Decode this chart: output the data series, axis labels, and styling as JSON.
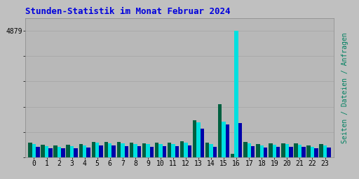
{
  "title": "Stunden-Statistik im Monat Februar 2024",
  "background_color": "#c0c0c0",
  "plot_bg_color": "#b8b8b8",
  "title_color": "#0000dd",
  "hours": [
    0,
    1,
    2,
    3,
    4,
    5,
    6,
    7,
    8,
    9,
    10,
    11,
    12,
    13,
    14,
    15,
    16,
    17,
    18,
    19,
    20,
    21,
    22,
    23
  ],
  "seiten": [
    560,
    490,
    460,
    500,
    530,
    610,
    600,
    595,
    575,
    555,
    565,
    580,
    620,
    1430,
    565,
    2050,
    130,
    610,
    530,
    545,
    555,
    545,
    460,
    510
  ],
  "dateien": [
    510,
    430,
    415,
    445,
    475,
    575,
    555,
    545,
    530,
    505,
    515,
    530,
    580,
    1360,
    510,
    1380,
    4879,
    555,
    475,
    490,
    510,
    490,
    420,
    465
  ],
  "anfragen": [
    420,
    355,
    345,
    368,
    392,
    470,
    460,
    450,
    440,
    418,
    428,
    440,
    472,
    1100,
    418,
    1280,
    1310,
    450,
    390,
    403,
    418,
    403,
    345,
    382
  ],
  "ylim": [
    0,
    5360
  ],
  "max_val": 4879,
  "ytick_vals": [
    0,
    975.8,
    1951.6,
    2927.4,
    3903.2,
    4879
  ],
  "color_seiten": "#006040",
  "color_dateien": "#00e0e0",
  "color_anfragen": "#0000aa",
  "bar_width": 0.3,
  "right_label": "Seiten / Dateien / Anfragen",
  "right_label_colors": [
    "#008060",
    "#00c0c0",
    "#006080"
  ]
}
